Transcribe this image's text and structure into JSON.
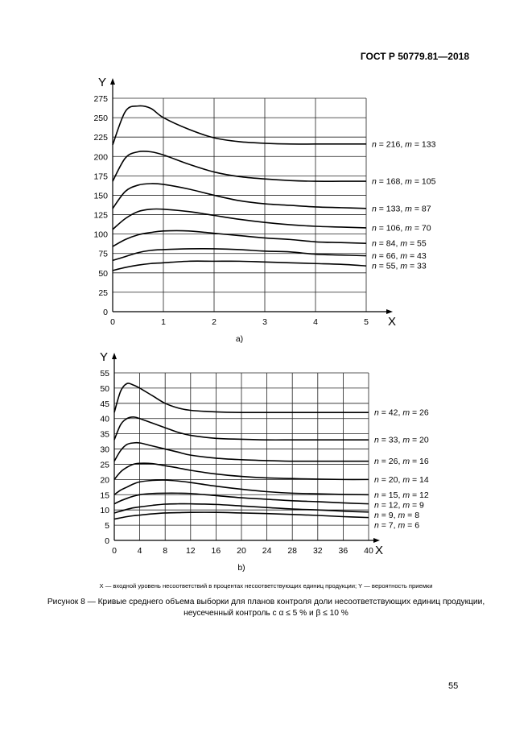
{
  "header": {
    "standard": "ГОСТ Р 50779.81—2018"
  },
  "legend_note": "X — входной уровень несоответствий в процентах несоответствующих единиц продукции; Y — вероятность приемки",
  "caption": {
    "line1": "Рисунок 8 — Кривые среднего объема выборки для планов контроля доли несоответствующих единиц продукции,",
    "line2": "неусеченный контроль с α ≤ 5 % и β ≤ 10 %"
  },
  "page_number": "55",
  "chart_data": [
    {
      "type": "line",
      "panel_label": "a)",
      "xlabel": "X",
      "ylabel": "Y",
      "xlim": [
        0,
        5
      ],
      "ylim": [
        0,
        275
      ],
      "grid": true,
      "x_ticks": [
        "0",
        "1",
        "2",
        "3",
        "4",
        "5"
      ],
      "y_ticks": [
        "0",
        "25",
        "50",
        "75",
        "100",
        "125",
        "150",
        "175",
        "200",
        "225",
        "250",
        "275"
      ],
      "x": [
        0,
        0.25,
        0.5,
        0.75,
        1,
        1.5,
        2,
        2.5,
        3,
        3.5,
        4,
        4.5,
        5
      ],
      "series": [
        {
          "name": "n = 216, m = 133",
          "values": [
            215,
            258,
            265,
            262,
            250,
            235,
            224,
            219,
            217,
            216,
            216,
            216,
            216
          ]
        },
        {
          "name": "n = 168, m = 105",
          "values": [
            168,
            198,
            206,
            206,
            202,
            190,
            180,
            174,
            171,
            169,
            168,
            168,
            168
          ]
        },
        {
          "name": "n = 133, m = 87",
          "values": [
            133,
            155,
            163,
            165,
            164,
            158,
            150,
            143,
            139,
            137,
            135,
            134,
            133
          ]
        },
        {
          "name": "n = 106, m = 70",
          "values": [
            106,
            120,
            129,
            132,
            132,
            129,
            124,
            119,
            115,
            112,
            110,
            109,
            108
          ]
        },
        {
          "name": "n = 84, m = 55",
          "values": [
            84,
            93,
            99,
            102,
            104,
            104,
            101,
            98,
            95,
            93,
            90,
            89,
            88
          ]
        },
        {
          "name": "n = 66, m = 43",
          "values": [
            66,
            71,
            76,
            79,
            80,
            81,
            81,
            80,
            78,
            77,
            74,
            73,
            72
          ]
        },
        {
          "name": "n = 55, m = 33",
          "values": [
            53,
            57,
            60,
            62,
            63,
            65,
            65,
            65,
            64,
            63,
            62,
            61,
            59
          ]
        }
      ]
    },
    {
      "type": "line",
      "panel_label": "b)",
      "xlabel": "X",
      "ylabel": "Y",
      "xlim": [
        0,
        40
      ],
      "ylim": [
        0,
        55
      ],
      "grid": true,
      "x_ticks": [
        "0",
        "4",
        "8",
        "12",
        "16",
        "20",
        "24",
        "28",
        "32",
        "36",
        "40"
      ],
      "y_ticks": [
        "0",
        "5",
        "10",
        "15",
        "20",
        "25",
        "30",
        "35",
        "40",
        "45",
        "50",
        "55"
      ],
      "x": [
        0,
        1,
        2,
        3,
        4,
        6,
        8,
        10,
        12,
        16,
        20,
        24,
        28,
        32,
        36,
        40
      ],
      "series": [
        {
          "name": "n = 42, m = 26",
          "values": [
            42,
            49,
            51.5,
            51,
            50,
            47.5,
            45,
            43.5,
            42.7,
            42.2,
            42,
            42,
            42,
            42,
            42,
            42
          ]
        },
        {
          "name": "n = 33, m = 20",
          "values": [
            33,
            38,
            40,
            40.5,
            40,
            38.5,
            37,
            35.5,
            34.5,
            33.5,
            33.2,
            33,
            33,
            33,
            33,
            33
          ]
        },
        {
          "name": "n = 26, m = 16",
          "values": [
            26,
            29.5,
            31.5,
            32,
            32,
            31,
            30,
            29,
            28,
            27,
            26.5,
            26.2,
            26,
            26,
            26,
            26
          ]
        },
        {
          "name": "n = 20, m = 14",
          "values": [
            20,
            22.5,
            24,
            25,
            25.3,
            25.2,
            24.5,
            23.8,
            23,
            21.8,
            21,
            20.5,
            20.3,
            20.1,
            20,
            20
          ]
        },
        {
          "name": "n = 15, m = 12",
          "values": [
            15,
            16.5,
            17.5,
            18.5,
            19.2,
            19.7,
            19.8,
            19.5,
            19,
            17.8,
            16.8,
            16,
            15.5,
            15.3,
            15.1,
            15
          ]
        },
        {
          "name": "n = 12, m = 9",
          "values": [
            12,
            13,
            13.8,
            14.5,
            15,
            15.4,
            15.5,
            15.5,
            15.4,
            14.7,
            14,
            13.5,
            13,
            12.7,
            12.3,
            12
          ]
        },
        {
          "name": "n = 9, m = 8",
          "values": [
            9,
            9.6,
            10.2,
            10.7,
            11,
            11.5,
            11.9,
            12,
            12,
            11.8,
            11.3,
            10.8,
            10.3,
            10,
            9.6,
            9.3
          ]
        },
        {
          "name": "n = 7, m = 6",
          "values": [
            7,
            7.4,
            7.8,
            8.1,
            8.3,
            8.7,
            9,
            9.1,
            9.2,
            9.2,
            9,
            8.8,
            8.5,
            8.2,
            7.8,
            7.5
          ]
        }
      ]
    }
  ]
}
